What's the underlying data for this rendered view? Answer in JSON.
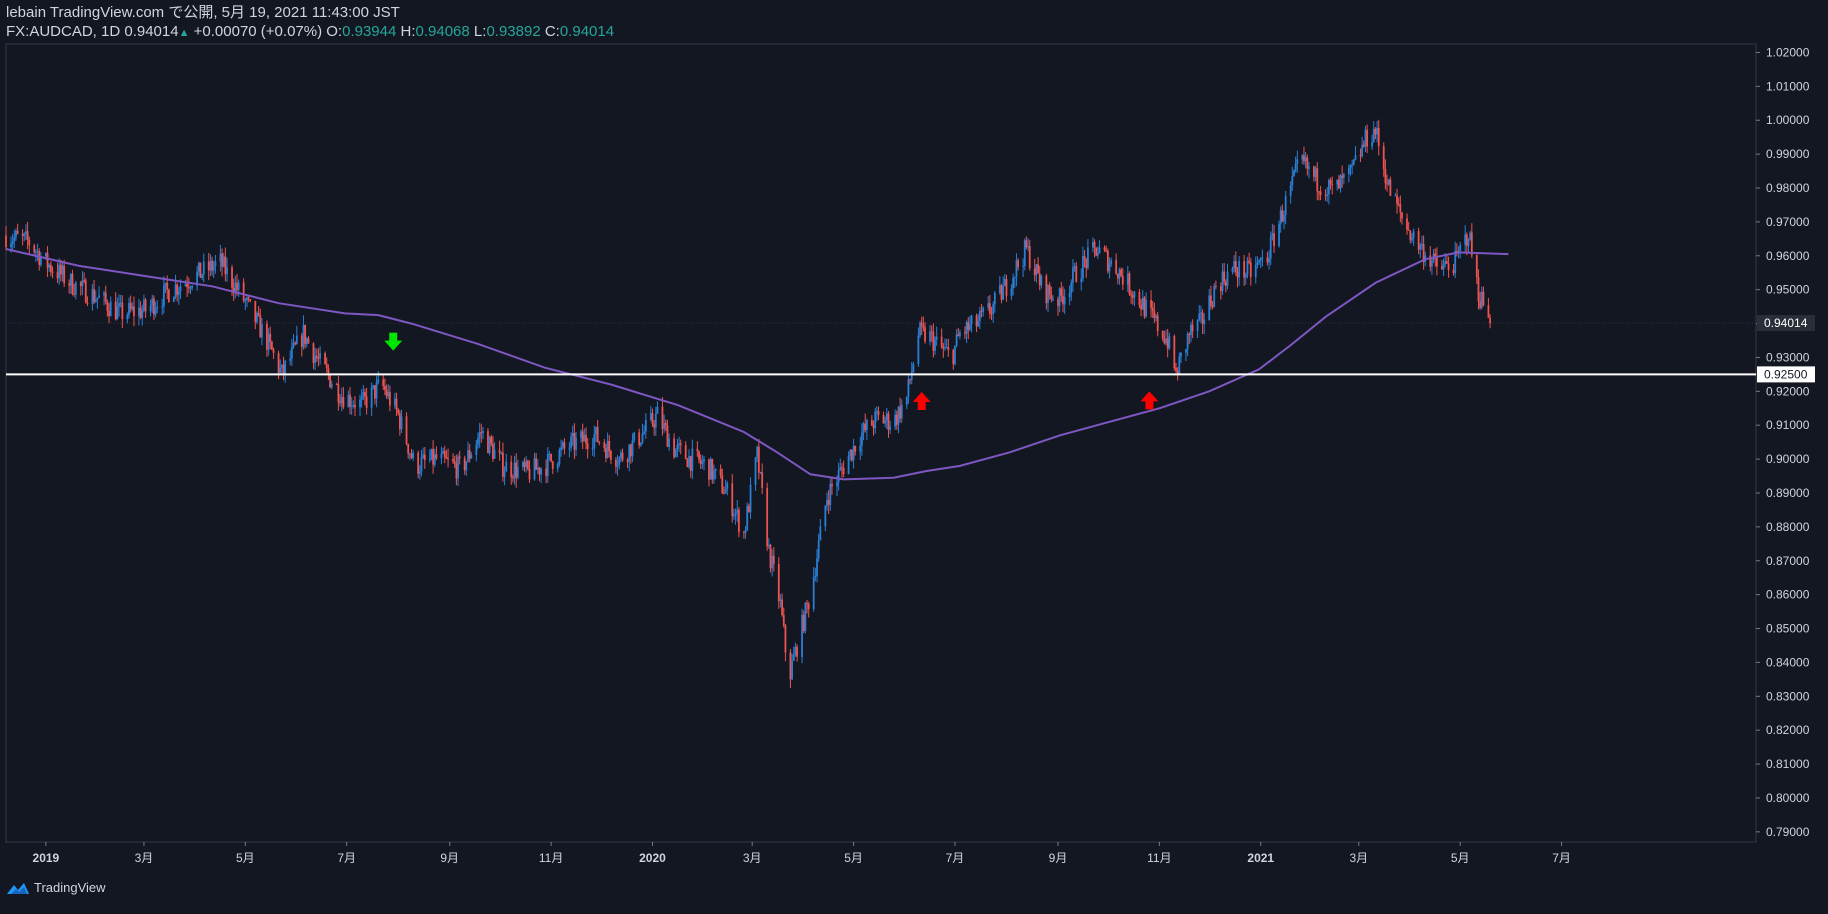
{
  "header": {
    "line1": "lebain TradingView.com で公開, 5月 19, 2021 11:43:00 JST",
    "symbol": "FX:AUDCAD, 1D",
    "last": "0.94014",
    "change": "+0.00070 (+0.07%)",
    "o_label": "O:",
    "o_val": "0.93944",
    "h_label": "H:",
    "h_val": "0.94068",
    "l_label": "L:",
    "l_val": "0.93892",
    "c_label": "C:",
    "c_val": "0.94014"
  },
  "footer": {
    "brand": "TradingView"
  },
  "colors": {
    "background": "#131722",
    "up": "#2a7fd4",
    "down": "#ef5350",
    "ma": "#7e57c2",
    "level": "#ffffff",
    "text": "#d1d4dc",
    "grid": "#2a2e39",
    "arrow_green": "#00e600",
    "arrow_red": "#ff0000"
  },
  "chart_data": {
    "type": "candlestick",
    "symbol": "FX:AUDCAD",
    "timeframe": "1D",
    "ylim": [
      0.787,
      1.0225
    ],
    "y_ticks": [
      "1.02000",
      "1.01000",
      "1.00000",
      "0.99000",
      "0.98000",
      "0.97000",
      "0.96000",
      "0.95000",
      "0.94000",
      "0.93000",
      "0.92000",
      "0.91000",
      "0.90000",
      "0.89000",
      "0.88000",
      "0.87000",
      "0.86000",
      "0.85000",
      "0.84000",
      "0.83000",
      "0.82000",
      "0.81000",
      "0.80000",
      "0.79000"
    ],
    "x_ticks": [
      {
        "label": "2019",
        "year": true,
        "t": 0
      },
      {
        "label": "3月",
        "t": 59
      },
      {
        "label": "5月",
        "t": 120
      },
      {
        "label": "7月",
        "t": 181
      },
      {
        "label": "9月",
        "t": 243
      },
      {
        "label": "11月",
        "t": 304
      },
      {
        "label": "2020",
        "year": true,
        "t": 365
      },
      {
        "label": "3月",
        "t": 425
      },
      {
        "label": "5月",
        "t": 486
      },
      {
        "label": "7月",
        "t": 547
      },
      {
        "label": "9月",
        "t": 609
      },
      {
        "label": "11月",
        "t": 670
      },
      {
        "label": "2021",
        "year": true,
        "t": 731
      },
      {
        "label": "3月",
        "t": 790
      },
      {
        "label": "5月",
        "t": 851
      },
      {
        "label": "7月",
        "t": 912
      }
    ],
    "t_range": [
      -24,
      1029
    ],
    "last_t": 869,
    "price_path": [
      [
        -24,
        0.966
      ],
      [
        -10,
        0.964
      ],
      [
        0,
        0.958
      ],
      [
        15,
        0.952
      ],
      [
        30,
        0.948
      ],
      [
        45,
        0.943
      ],
      [
        60,
        0.944
      ],
      [
        75,
        0.95
      ],
      [
        90,
        0.954
      ],
      [
        105,
        0.958
      ],
      [
        118,
        0.948
      ],
      [
        132,
        0.936
      ],
      [
        142,
        0.925
      ],
      [
        155,
        0.937
      ],
      [
        165,
        0.928
      ],
      [
        178,
        0.919
      ],
      [
        190,
        0.916
      ],
      [
        202,
        0.922
      ],
      [
        212,
        0.913
      ],
      [
        222,
        0.898
      ],
      [
        235,
        0.9
      ],
      [
        250,
        0.897
      ],
      [
        262,
        0.908
      ],
      [
        275,
        0.898
      ],
      [
        290,
        0.896
      ],
      [
        300,
        0.898
      ],
      [
        315,
        0.904
      ],
      [
        330,
        0.907
      ],
      [
        345,
        0.9
      ],
      [
        360,
        0.908
      ],
      [
        368,
        0.913
      ],
      [
        378,
        0.903
      ],
      [
        388,
        0.9
      ],
      [
        398,
        0.898
      ],
      [
        410,
        0.89
      ],
      [
        420,
        0.878
      ],
      [
        428,
        0.901
      ],
      [
        435,
        0.873
      ],
      [
        442,
        0.857
      ],
      [
        447,
        0.835
      ],
      [
        452,
        0.845
      ],
      [
        460,
        0.86
      ],
      [
        470,
        0.889
      ],
      [
        480,
        0.898
      ],
      [
        490,
        0.907
      ],
      [
        500,
        0.912
      ],
      [
        510,
        0.911
      ],
      [
        518,
        0.918
      ],
      [
        525,
        0.937
      ],
      [
        532,
        0.936
      ],
      [
        540,
        0.932
      ],
      [
        545,
        0.93
      ],
      [
        550,
        0.937
      ],
      [
        560,
        0.94
      ],
      [
        570,
        0.945
      ],
      [
        580,
        0.953
      ],
      [
        590,
        0.962
      ],
      [
        600,
        0.95
      ],
      [
        610,
        0.947
      ],
      [
        620,
        0.955
      ],
      [
        632,
        0.962
      ],
      [
        645,
        0.956
      ],
      [
        655,
        0.949
      ],
      [
        665,
        0.942
      ],
      [
        675,
        0.935
      ],
      [
        680,
        0.925
      ],
      [
        688,
        0.937
      ],
      [
        695,
        0.94
      ],
      [
        705,
        0.952
      ],
      [
        715,
        0.956
      ],
      [
        725,
        0.955
      ],
      [
        735,
        0.96
      ],
      [
        745,
        0.974
      ],
      [
        755,
        0.988
      ],
      [
        765,
        0.982
      ],
      [
        775,
        0.979
      ],
      [
        785,
        0.984
      ],
      [
        795,
        0.995
      ],
      [
        800,
        0.997
      ],
      [
        808,
        0.98
      ],
      [
        818,
        0.969
      ],
      [
        828,
        0.962
      ],
      [
        838,
        0.956
      ],
      [
        848,
        0.958
      ],
      [
        856,
        0.967
      ],
      [
        862,
        0.949
      ],
      [
        866,
        0.945
      ],
      [
        869,
        0.94
      ]
    ],
    "series": [
      {
        "name": "AUDCAD",
        "ohlc": "candles"
      },
      {
        "name": "moving average",
        "path": [
          [
            -24,
            0.962
          ],
          [
            20,
            0.957
          ],
          [
            60,
            0.954
          ],
          [
            100,
            0.951
          ],
          [
            140,
            0.946
          ],
          [
            180,
            0.943
          ],
          [
            200,
            0.9425
          ],
          [
            220,
            0.94
          ],
          [
            260,
            0.934
          ],
          [
            300,
            0.927
          ],
          [
            340,
            0.922
          ],
          [
            380,
            0.916
          ],
          [
            400,
            0.912
          ],
          [
            420,
            0.908
          ],
          [
            440,
            0.902
          ],
          [
            460,
            0.8955
          ],
          [
            480,
            0.894
          ],
          [
            510,
            0.8945
          ],
          [
            530,
            0.8965
          ],
          [
            550,
            0.898
          ],
          [
            580,
            0.902
          ],
          [
            610,
            0.907
          ],
          [
            640,
            0.911
          ],
          [
            670,
            0.915
          ],
          [
            700,
            0.92
          ],
          [
            730,
            0.9265
          ],
          [
            750,
            0.934
          ],
          [
            770,
            0.942
          ],
          [
            800,
            0.952
          ],
          [
            830,
            0.959
          ],
          [
            850,
            0.961
          ],
          [
            880,
            0.9605
          ]
        ]
      }
    ],
    "levels": [
      {
        "value": 0.925,
        "label": "0.92500"
      }
    ],
    "last_label": "0.94014",
    "markers": [
      {
        "t": 209,
        "price": 0.932,
        "direction": "down",
        "color": "green"
      },
      {
        "t": 527,
        "price": 0.9198,
        "direction": "up",
        "color": "red"
      },
      {
        "t": 664,
        "price": 0.92,
        "direction": "up",
        "color": "red"
      }
    ]
  }
}
